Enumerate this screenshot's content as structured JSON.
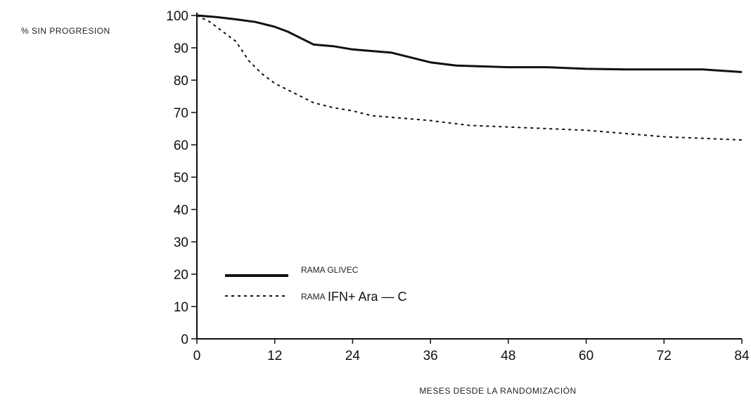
{
  "chart_data": {
    "type": "line",
    "title": "",
    "ylabel": "% SIN PROGRESION",
    "xlabel": "MESES DESDE LA RANDOMIZACIÓN",
    "xlim": [
      0,
      84
    ],
    "ylim": [
      0,
      100
    ],
    "x_ticks": [
      "0",
      "12",
      "24",
      "36",
      "48",
      "60",
      "72",
      "84"
    ],
    "y_ticks": [
      "0",
      "10",
      "20",
      "30",
      "40",
      "50",
      "60",
      "70",
      "80",
      "90",
      "100"
    ],
    "grid": false,
    "legend_position": "lower-left",
    "series": [
      {
        "name": "RAMA GLIVEC",
        "style": "solid",
        "color": "#111111",
        "x": [
          0,
          3,
          6,
          9,
          12,
          14,
          16,
          18,
          21,
          24,
          27,
          30,
          33,
          36,
          40,
          48,
          54,
          60,
          66,
          72,
          78,
          84
        ],
        "y": [
          100,
          99.5,
          98.8,
          98,
          96.5,
          95,
          93,
          91,
          90.5,
          89.5,
          89,
          88.5,
          87,
          85.5,
          84.5,
          84,
          84,
          83.5,
          83.3,
          83.3,
          83.3,
          82.5
        ]
      },
      {
        "name": "RAMA IFN+ Ara — C",
        "style": "dashed",
        "color": "#111111",
        "x": [
          0,
          2,
          4,
          6,
          8,
          10,
          12,
          15,
          18,
          21,
          24,
          27,
          30,
          33,
          36,
          42,
          48,
          54,
          60,
          66,
          72,
          78,
          84
        ],
        "y": [
          100,
          98,
          95,
          92,
          86,
          82,
          79,
          76,
          73,
          71.5,
          70.5,
          69,
          68.5,
          68,
          67.5,
          66,
          65.5,
          65,
          64.5,
          63.5,
          62.5,
          62,
          61.5
        ]
      }
    ],
    "legend": {
      "items": [
        {
          "label": "RAMA GLIVEC",
          "style": "solid"
        },
        {
          "label_prefix": "RAMA",
          "label_main": "IFN+ Ara — C",
          "style": "dashed"
        }
      ]
    }
  }
}
